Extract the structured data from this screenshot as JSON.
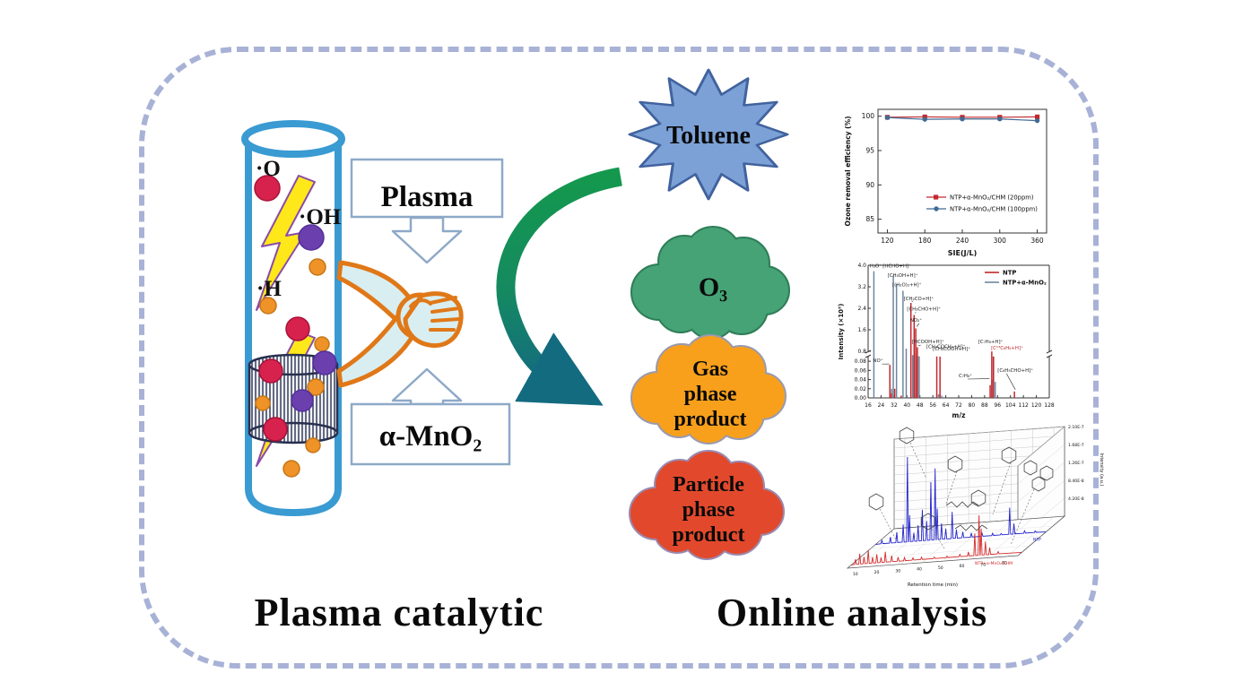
{
  "captions": {
    "left": "Plasma catalytic",
    "right": "Online analysis"
  },
  "reactor": {
    "radicals": [
      {
        "label": "·O"
      },
      {
        "label": "·OH"
      },
      {
        "label": "·H"
      }
    ],
    "plasma_label": "Plasma",
    "catalyst_label": "α-MnO₂"
  },
  "species": {
    "toluene": "Toluene",
    "ozone": "O₃",
    "gas_lines": [
      "Gas",
      "phase",
      "product"
    ],
    "particle_lines": [
      "Particle",
      "phase",
      "product"
    ]
  },
  "colors": {
    "frame_border": "#a8b2d6",
    "tube_blue": "#3a9ad2",
    "lightning_fill": "#ffe81a",
    "lightning_stroke": "#8b4ba8",
    "dot_red": "#d6224c",
    "dot_purple": "#6b3fae",
    "dot_orange": "#ef9227",
    "box_stroke": "#8ea9c8",
    "hand_stroke": "#e07818",
    "hand_fill": "#d8eef1",
    "star_fill": "#7ba1d7",
    "star_stroke": "#41629e",
    "ozone_fill": "#45a375",
    "ozone_stroke": "#2f7d57",
    "gas_fill": "#f8a01b",
    "gas_stroke": "#9a9ab0",
    "particle_fill": "#e2492c",
    "particle_stroke": "#9a8ab0",
    "arrow_start": "#14984d",
    "arrow_end": "#136b80"
  },
  "chart_data": [
    {
      "type": "scatter",
      "xlabel": "SIE(J/L)",
      "ylabel": "Ozone removal efficiency (%)",
      "x": [
        120,
        180,
        240,
        300,
        360
      ],
      "xlim": [
        105,
        375
      ],
      "ylim": [
        83,
        101
      ],
      "yticks": [
        85,
        90,
        95,
        100
      ],
      "grid": false,
      "legend_position": "inside-bottom-center",
      "series": [
        {
          "name": "NTP+α-MnO₂/CHM (20ppm)",
          "color": "#c0282d",
          "marker": "square",
          "values": [
            99.85,
            99.9,
            99.85,
            99.85,
            99.9
          ]
        },
        {
          "name": "NTP+α-MnO₂/CHM (100ppm)",
          "color": "#3f6a94",
          "marker": "circle",
          "values": [
            99.8,
            99.55,
            99.6,
            99.6,
            99.35
          ]
        }
      ]
    },
    {
      "type": "bar",
      "xlabel": "m/z",
      "ylabel": "Intensity (×10⁵)",
      "xticks": [
        16,
        24,
        32,
        40,
        48,
        56,
        64,
        72,
        80,
        88,
        96,
        104,
        112,
        120,
        128
      ],
      "xlim": [
        16,
        128
      ],
      "broken_axis": {
        "lower_range": [
          0.0,
          0.09
        ],
        "upper_range": [
          0.8,
          4.0
        ],
        "lower_ticks": [
          "0.00",
          "0.02",
          "0.04",
          "0.06",
          "0.08"
        ],
        "upper_ticks": [
          "0.8",
          "1.6",
          "2.4",
          "3.2",
          "4.0"
        ]
      },
      "series": [
        {
          "name": "NTP",
          "color": "#c0282d"
        },
        {
          "name": "NTP+α-MnO₂",
          "color": "#6e87a0"
        }
      ],
      "peaks": [
        {
          "mz": 19,
          "ntp": 0,
          "mno2": 3.78
        },
        {
          "mz": 30,
          "ntp": 0.072,
          "mno2": 0.02
        },
        {
          "mz": 31,
          "ntp": 0.01,
          "mno2": 3.62
        },
        {
          "mz": 33,
          "ntp": 0.02,
          "mno2": 3.3
        },
        {
          "mz": 37,
          "ntp": 0.005,
          "mno2": 3.05
        },
        {
          "mz": 39,
          "ntp": 0,
          "mno2": 0.9
        },
        {
          "mz": 43,
          "ntp": 2.6,
          "mno2": 0.3
        },
        {
          "mz": 45,
          "ntp": 2.15,
          "mno2": 0.4
        },
        {
          "mz": 46,
          "ntp": 1.65,
          "mno2": 0.1
        },
        {
          "mz": 47,
          "ntp": 0.95,
          "mno2": 0.15
        },
        {
          "mz": 59,
          "ntp": 0.12,
          "mno2": 0.008
        },
        {
          "mz": 61,
          "ntp": 0.1,
          "mno2": 0.005
        },
        {
          "mz": 92,
          "ntp": 0.028,
          "mno2": 0.04
        },
        {
          "mz": 93,
          "ntp": 0.78,
          "mno2": 0.12
        },
        {
          "mz": 94,
          "ntp": 0.1,
          "mno2": 0.035
        },
        {
          "mz": 107,
          "ntp": 0.014,
          "mno2": 0.003
        }
      ],
      "annotations": [
        {
          "text": "H₃O⁺",
          "x": 17,
          "y": 3.92
        },
        {
          "text": "[HCHO+H]⁺",
          "x": 25,
          "y": 3.92
        },
        {
          "text": "[CH₃OH+H]⁺",
          "x": 28,
          "y": 3.56
        },
        {
          "text": "[(H₂O)₂+H]⁺",
          "x": 31,
          "y": 3.22
        },
        {
          "text": "[CH₂CO+H]⁺",
          "x": 38,
          "y": 2.7,
          "tip": [
            43,
            2.68
          ]
        },
        {
          "text": "[CH₃CHO+H]⁺",
          "x": 40,
          "y": 2.32,
          "tip": [
            45,
            2.22
          ]
        },
        {
          "text": "NO₂⁺",
          "x": 42,
          "y": 1.9,
          "tip": [
            46,
            1.72
          ]
        },
        {
          "text": "[HCOOH+H]⁺",
          "x": 43,
          "y": 1.1,
          "tip": [
            47,
            1.0
          ]
        },
        {
          "text": "[CH₃COCH₃+H]⁺",
          "x": 52,
          "y": 0.92
        },
        {
          "text": "[CH₃COOH+H]⁺",
          "x": 56,
          "y": 0.83
        },
        {
          "text": "[C₇H₈+H]⁺",
          "x": 84,
          "y": 1.1
        },
        {
          "text": "[C¹³C₆H₈+H]⁺",
          "x": 92,
          "y": 0.86,
          "color": "#c0282d"
        },
        {
          "text": "NO⁺",
          "x": 19,
          "y": 0.078,
          "tip": [
            29,
            0.074
          ]
        },
        {
          "text": "C₇H₈⁺",
          "x": 72,
          "y": 0.045,
          "tip": [
            91,
            0.042
          ]
        },
        {
          "text": "[C₆H₅CHO+H]⁺",
          "x": 96,
          "y": 0.057,
          "tip": [
            107,
            0.018
          ]
        }
      ]
    },
    {
      "type": "line-3d",
      "xlabel": "Retention time (min)",
      "zlabel": "Intensity (a.u.)",
      "xticks": [
        10,
        20,
        30,
        40,
        50,
        60,
        70,
        80
      ],
      "xlim": [
        5,
        85
      ],
      "ztick_labels": [
        "4.20E-8",
        "8.40E-8",
        "1.26E-7",
        "1.68E-7",
        "2.10E-7"
      ],
      "series": [
        {
          "name": "NTP",
          "color": "#2323cd",
          "depth": 0.6,
          "peaks": [
            [
              8,
              0.04
            ],
            [
              12,
              0.07
            ],
            [
              15,
              0.12
            ],
            [
              18,
              0.2
            ],
            [
              20,
              0.95
            ],
            [
              21,
              0.3
            ],
            [
              23,
              0.1
            ],
            [
              25,
              0.18
            ],
            [
              27,
              0.35
            ],
            [
              29,
              0.22
            ],
            [
              31,
              0.65
            ],
            [
              33,
              0.8
            ],
            [
              34,
              0.35
            ],
            [
              36,
              0.18
            ],
            [
              38,
              0.12
            ],
            [
              41,
              0.3
            ],
            [
              43,
              0.1
            ],
            [
              46,
              0.07
            ],
            [
              50,
              0.05
            ],
            [
              55,
              0.04
            ],
            [
              60,
              0.03
            ],
            [
              64,
              0.02
            ],
            [
              68,
              0.3
            ],
            [
              70,
              0.12
            ],
            [
              75,
              0.03
            ],
            [
              80,
              0.02
            ]
          ]
        },
        {
          "name": "NTP+α-MnO₂/CHM",
          "color": "#d42a2a",
          "depth": 0.08,
          "peaks": [
            [
              7,
              0.06
            ],
            [
              9,
              0.12
            ],
            [
              11,
              0.08
            ],
            [
              13,
              0.15
            ],
            [
              15,
              0.07
            ],
            [
              17,
              0.1
            ],
            [
              19,
              0.06
            ],
            [
              21,
              0.12
            ],
            [
              24,
              0.07
            ],
            [
              27,
              0.05
            ],
            [
              30,
              0.04
            ],
            [
              34,
              0.03
            ],
            [
              38,
              0.03
            ],
            [
              44,
              0.02
            ],
            [
              50,
              0.02
            ],
            [
              56,
              0.03
            ],
            [
              60,
              0.05
            ],
            [
              63,
              0.25
            ],
            [
              65,
              0.45
            ],
            [
              66,
              0.3
            ],
            [
              68,
              0.15
            ],
            [
              70,
              0.08
            ],
            [
              74,
              0.03
            ]
          ]
        }
      ]
    }
  ]
}
